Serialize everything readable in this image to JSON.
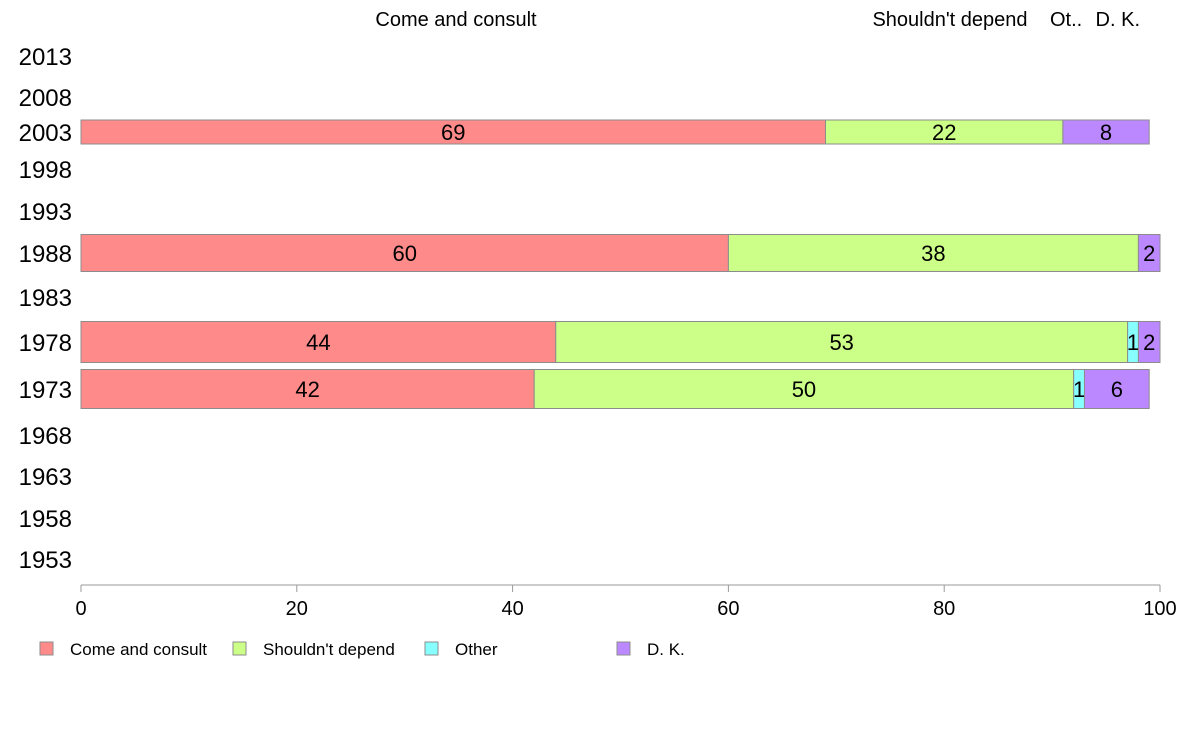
{
  "chart_data": {
    "type": "bar",
    "orientation": "horizontal",
    "stacked": true,
    "percent": true,
    "title": "",
    "xlabel": "",
    "ylabel": "",
    "xlim": [
      0,
      100
    ],
    "x_ticks": [
      "0",
      "20",
      "40",
      "60",
      "80",
      "100"
    ],
    "categories": [
      "2013",
      "2008",
      "2003",
      "1998",
      "1993",
      "1988",
      "1983",
      "1978",
      "1973",
      "1968",
      "1963",
      "1958",
      "1953"
    ],
    "top_labels": [
      "Come and consult",
      "Shouldn't depend",
      "Ot..",
      "D. K."
    ],
    "legend_position": "bottom",
    "series": [
      {
        "name": "Come and consult",
        "color": "#FF8A8A",
        "values": [
          null,
          null,
          69,
          null,
          null,
          60,
          null,
          44,
          42,
          null,
          null,
          null,
          null
        ]
      },
      {
        "name": "Shouldn't depend",
        "color": "#CCFF88",
        "values": [
          null,
          null,
          22,
          null,
          null,
          38,
          null,
          53,
          50,
          null,
          null,
          null,
          null
        ]
      },
      {
        "name": "Other",
        "color": "#88FFFF",
        "values": [
          null,
          null,
          0,
          null,
          null,
          0,
          null,
          1,
          1,
          null,
          null,
          null,
          null
        ]
      },
      {
        "name": "D. K.",
        "color": "#BB88FF",
        "values": [
          null,
          null,
          8,
          null,
          null,
          2,
          null,
          2,
          6,
          null,
          null,
          null,
          null
        ]
      }
    ]
  }
}
